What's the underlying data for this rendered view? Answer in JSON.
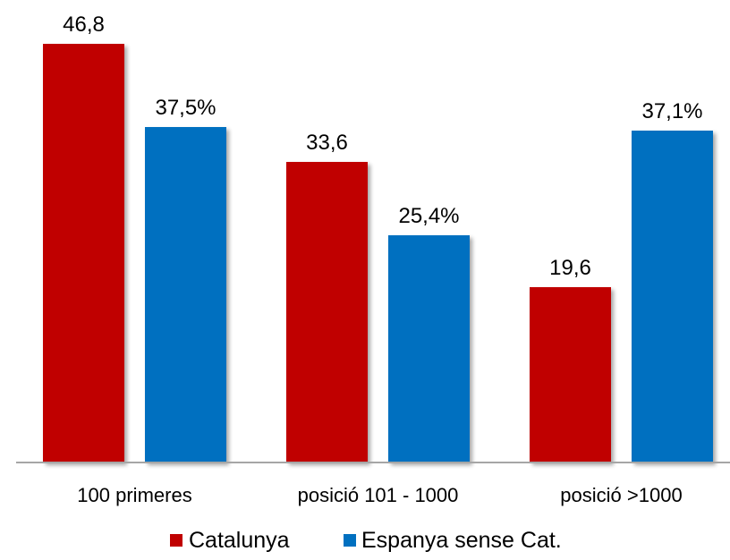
{
  "chart_data": {
    "type": "bar",
    "categories": [
      "100 primeres",
      "posició 101 - 1000",
      "posició >1000"
    ],
    "series": [
      {
        "name": "Catalunya",
        "values": [
          46.8,
          33.6,
          19.6
        ],
        "labels": [
          "46,8",
          "33,6",
          "19,6"
        ],
        "color": "#c00000"
      },
      {
        "name": "Espanya sense Cat.",
        "values": [
          37.5,
          25.4,
          37.1
        ],
        "labels": [
          "37,5%",
          "25,4%",
          "37,1%"
        ],
        "color": "#0070c0"
      }
    ],
    "ylim": [
      0,
      50
    ],
    "grid": false,
    "legend_position": "bottom",
    "axis_color": "#a6a6a6",
    "text_color": "#000000"
  }
}
